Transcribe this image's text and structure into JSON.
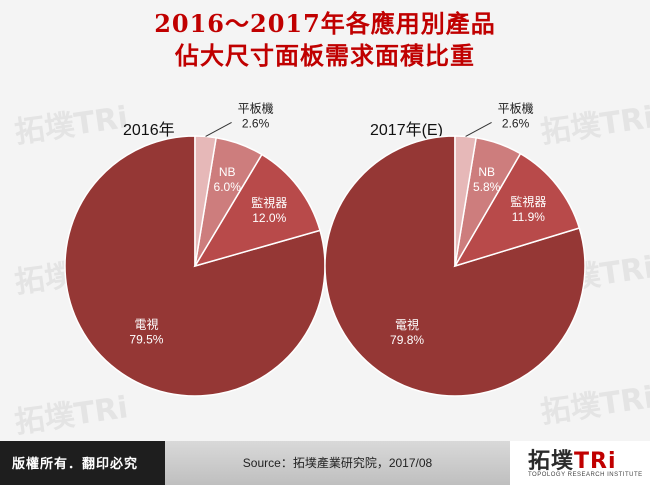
{
  "header": {
    "title_line1": "2016～2017年各應用別產品",
    "title_line2": "佔大尺寸面板需求面積比重"
  },
  "watermark": "拓墣TRi",
  "chart_data": [
    {
      "type": "pie",
      "title": "2016年",
      "slices": [
        {
          "label": "電視",
          "value": 79.5,
          "display": "79.5%",
          "color": "#953735"
        },
        {
          "label": "監視器",
          "value": 12.0,
          "display": "12.0%",
          "color": "#b84a4a"
        },
        {
          "label": "NB",
          "value": 6.0,
          "display": "6.0%",
          "color": "#cd7d7d"
        },
        {
          "label": "平板機",
          "value": 2.6,
          "display": "2.6%",
          "color": "#e6b8b8"
        }
      ]
    },
    {
      "type": "pie",
      "title": "2017年(E)",
      "slices": [
        {
          "label": "電視",
          "value": 79.8,
          "display": "79.8%",
          "color": "#953735"
        },
        {
          "label": "監視器",
          "value": 11.9,
          "display": "11.9%",
          "color": "#b84a4a"
        },
        {
          "label": "NB",
          "value": 5.8,
          "display": "5.8%",
          "color": "#cd7d7d"
        },
        {
          "label": "平板機",
          "value": 2.6,
          "display": "2.6%",
          "color": "#e6b8b8"
        }
      ]
    }
  ],
  "footer": {
    "copyright": "版權所有．翻印必究",
    "source": "Source：拓墣產業研究院，2017/08",
    "logo_main": "拓墣",
    "logo_accent": "TRi",
    "logo_sub": "TOPOLOGY RESEARCH INSTITUTE"
  }
}
